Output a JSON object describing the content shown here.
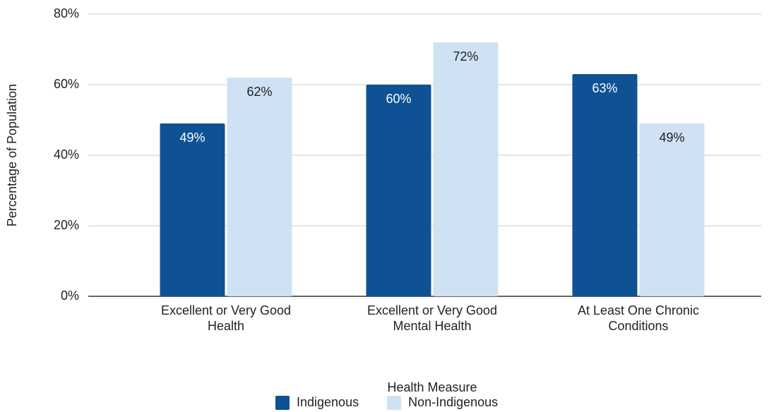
{
  "chart_data": {
    "type": "bar",
    "categories": [
      "Excellent or Very Good Health",
      "Excellent or Very Good Mental Health",
      "At Least One Chronic Conditions"
    ],
    "series": [
      {
        "name": "Indigenous",
        "color": "#0f5294",
        "values": [
          49,
          60,
          63
        ],
        "value_labels": [
          "49%",
          "60%",
          "63%"
        ]
      },
      {
        "name": "Non-Indigenous",
        "color": "#cfe2f3",
        "values": [
          62,
          72,
          49
        ],
        "value_labels": [
          "62%",
          "72%",
          "49%"
        ]
      }
    ],
    "xlabel": "Health Measure",
    "ylabel": "Percentage of Population",
    "ylim": [
      0,
      80
    ],
    "yticks": [
      {
        "value": 0,
        "label": "0%"
      },
      {
        "value": 20,
        "label": "20%"
      },
      {
        "value": 40,
        "label": "40%"
      },
      {
        "value": 60,
        "label": "60%"
      },
      {
        "value": 80,
        "label": "80%"
      }
    ],
    "grid": true,
    "legend": "bottom"
  }
}
